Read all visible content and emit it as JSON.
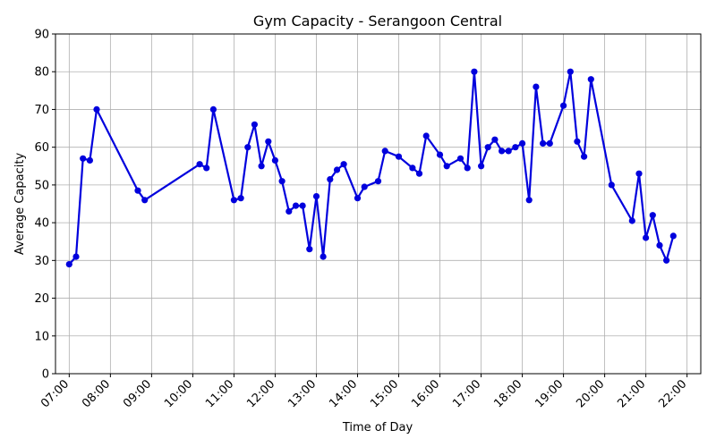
{
  "chart_data": {
    "type": "line",
    "title": "Gym Capacity - Serangoon Central",
    "xlabel": "Time of Day",
    "ylabel": "Average Capacity",
    "xlim": [
      "06:40",
      "22:20"
    ],
    "ylim": [
      0,
      90
    ],
    "grid": true,
    "x_ticks": [
      "07:00",
      "08:00",
      "09:00",
      "10:00",
      "11:00",
      "12:00",
      "13:00",
      "14:00",
      "15:00",
      "16:00",
      "17:00",
      "18:00",
      "19:00",
      "20:00",
      "21:00",
      "22:00"
    ],
    "y_ticks": [
      0,
      10,
      20,
      30,
      40,
      50,
      60,
      70,
      80,
      90
    ],
    "color": "#0000dd",
    "x": [
      "07:00",
      "07:10",
      "07:20",
      "07:30",
      "07:40",
      "08:40",
      "08:50",
      "10:10",
      "10:20",
      "10:30",
      "11:00",
      "11:10",
      "11:20",
      "11:30",
      "11:40",
      "11:50",
      "12:00",
      "12:10",
      "12:20",
      "12:30",
      "12:40",
      "12:50",
      "13:00",
      "13:10",
      "13:20",
      "13:30",
      "13:40",
      "14:00",
      "14:10",
      "14:30",
      "14:40",
      "15:00",
      "15:20",
      "15:30",
      "15:40",
      "16:00",
      "16:10",
      "16:30",
      "16:40",
      "16:50",
      "17:00",
      "17:10",
      "17:20",
      "17:30",
      "17:40",
      "17:50",
      "18:00",
      "18:10",
      "18:20",
      "18:30",
      "18:40",
      "19:00",
      "19:10",
      "19:20",
      "19:30",
      "19:40",
      "20:10",
      "20:40",
      "20:50",
      "21:00",
      "21:10",
      "21:20",
      "21:30",
      "21:40"
    ],
    "values": [
      29,
      31,
      57,
      56.5,
      70,
      48.5,
      46,
      55.5,
      54.5,
      70,
      46,
      46.5,
      60,
      66,
      55,
      61.5,
      56.5,
      51,
      43,
      44.5,
      44.5,
      33,
      47,
      31,
      51.5,
      54,
      55.5,
      46.5,
      49.5,
      51,
      59,
      57.5,
      54.5,
      53,
      63,
      58,
      55,
      57,
      54.5,
      80,
      55,
      60,
      62,
      59,
      59,
      60,
      61,
      46,
      76,
      61,
      61,
      71,
      80,
      61.5,
      57.5,
      78,
      50,
      40.5,
      53,
      36,
      42,
      34,
      30,
      36.5
    ]
  }
}
